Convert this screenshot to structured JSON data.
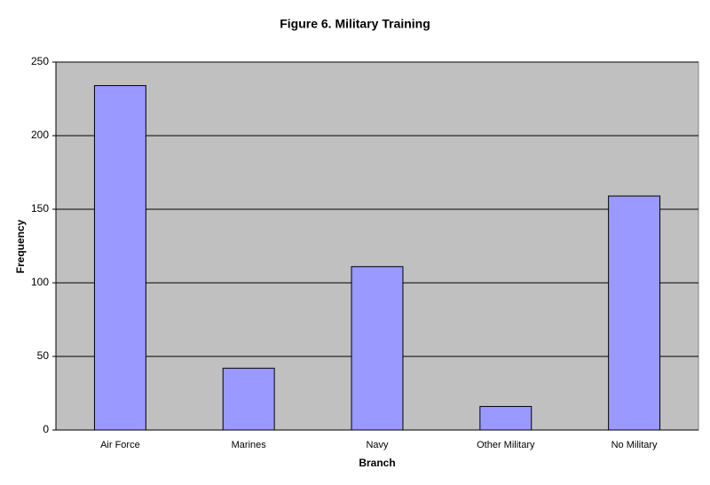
{
  "chart_data": {
    "type": "bar",
    "title": "Figure 6. Military Training",
    "x_label": "Branch",
    "y_label": "Frequency",
    "categories": [
      "Air Force",
      "Marines",
      "Navy",
      "Other Military",
      "No Military"
    ],
    "values": [
      234,
      42,
      111,
      16,
      159
    ],
    "color": "#9999ff",
    "ylim": [
      0,
      250
    ],
    "yticks": [
      0,
      50,
      100,
      150,
      200,
      250
    ],
    "grid": true
  }
}
